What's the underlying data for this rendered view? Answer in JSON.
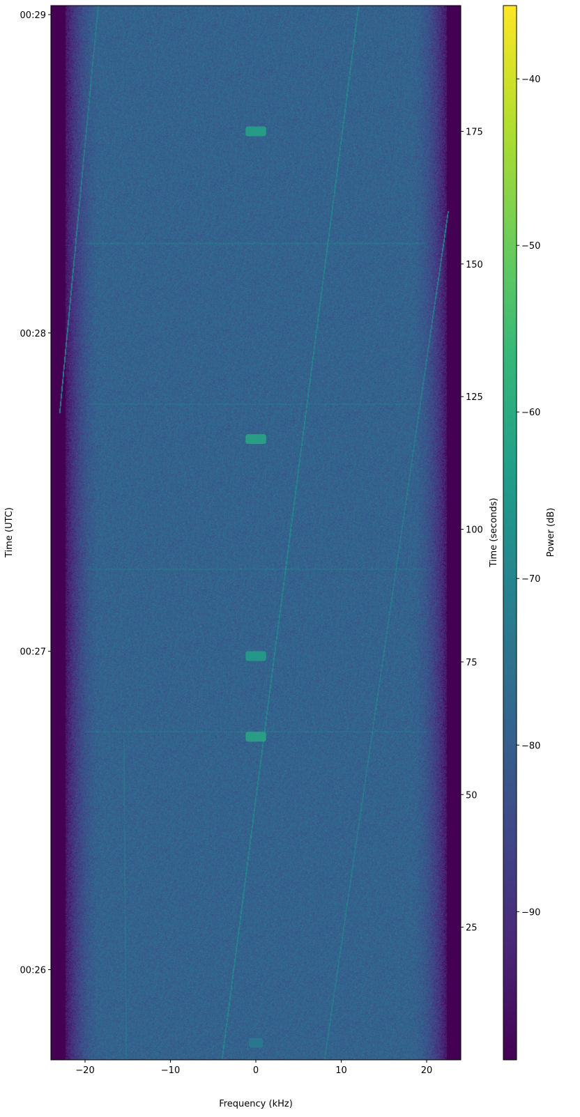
{
  "chart_data": {
    "type": "heatmap",
    "title": "",
    "xlabel": "Frequency (kHz)",
    "ylabel_left": "Time (UTC)",
    "ylabel_right": "Time (seconds)",
    "colorbar_label": "Power (dB)",
    "colormap": "viridis",
    "xlim": [
      -24,
      24
    ],
    "ylim_seconds": [
      0,
      198.7
    ],
    "clim": [
      -98.9,
      -35.6
    ],
    "start_time_utc": "00:25:43",
    "x_ticks": [
      -20,
      -10,
      0,
      10,
      20
    ],
    "x_tick_labels": [
      "−20",
      "−10",
      "0",
      "10",
      "20"
    ],
    "y_left_ticks": [
      {
        "seconds": 17,
        "label": "00:26"
      },
      {
        "seconds": 77,
        "label": "00:27"
      },
      {
        "seconds": 137,
        "label": "00:28"
      },
      {
        "seconds": 197,
        "label": "00:29"
      }
    ],
    "y_right_ticks": [
      25,
      50,
      75,
      100,
      125,
      150,
      175
    ],
    "colorbar_ticks": [
      {
        "value": -40,
        "label": "−40"
      },
      {
        "value": -50,
        "label": "−50"
      },
      {
        "value": -60,
        "label": "−60"
      },
      {
        "value": -70,
        "label": "−70"
      },
      {
        "value": -80,
        "label": "−80"
      },
      {
        "value": -90,
        "label": "−90"
      }
    ],
    "noise_floor_db": -79,
    "passband_khz": [
      -22,
      22
    ],
    "bursts": [
      {
        "t_seconds": 175.0,
        "f_khz": [
          -1.2,
          1.2
        ],
        "power_db": -62
      },
      {
        "t_seconds": 117.0,
        "f_khz": [
          -1.2,
          1.2
        ],
        "power_db": -61
      },
      {
        "t_seconds": 76.1,
        "f_khz": [
          -1.2,
          1.2
        ],
        "power_db": -63
      },
      {
        "t_seconds": 60.9,
        "f_khz": [
          -1.2,
          1.2
        ],
        "power_db": -61
      },
      {
        "t_seconds": 3.2,
        "f_khz": [
          -0.8,
          0.8
        ],
        "power_db": -72
      }
    ],
    "drift_lines": [
      {
        "f_start_khz": -4,
        "t_start": 0,
        "f_end_khz": 12,
        "t_end": 198.7,
        "power_db": -70
      },
      {
        "f_start_khz": 8,
        "t_start": 0,
        "f_end_khz": 22.5,
        "t_end": 160,
        "power_db": -72
      },
      {
        "f_start_khz": -23,
        "t_start": 122,
        "f_end_khz": -18.5,
        "t_end": 198.7,
        "power_db": -72
      },
      {
        "f_start_khz": -15.2,
        "t_start": 0,
        "f_end_khz": -15.5,
        "t_end": 60,
        "power_db": -75
      }
    ],
    "horizontal_lines_seconds": [
      153.9,
      123.6,
      92.5,
      61.9
    ]
  }
}
